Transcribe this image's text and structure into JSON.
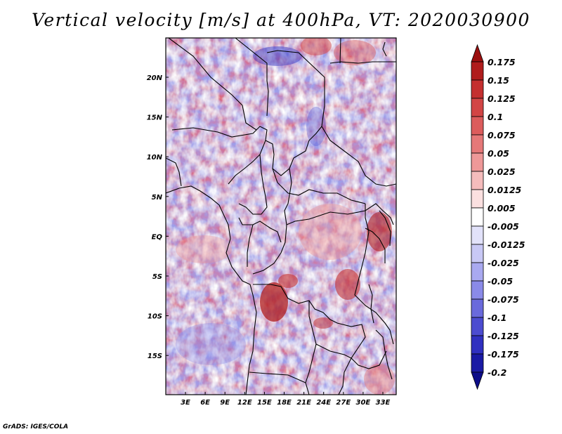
{
  "title": "Vertical velocity [m/s] at 400hPa, VT: 2020030900",
  "footer": "GrADS: IGES/COLA",
  "map": {
    "lat_labels": [
      "20N",
      "15N",
      "10N",
      "5N",
      "EQ",
      "5S",
      "10S",
      "15S"
    ],
    "lon_labels": [
      "3E",
      "6E",
      "9E",
      "12E",
      "15E",
      "18E",
      "21E",
      "24E",
      "27E",
      "30E",
      "33E"
    ]
  },
  "colorbar": {
    "labels": [
      "0.175",
      "0.15",
      "0.125",
      "0.1",
      "0.075",
      "0.05",
      "0.025",
      "0.0125",
      "0.005",
      "-0.005",
      "-0.0125",
      "-0.025",
      "-0.05",
      "-0.075",
      "-0.1",
      "-0.125",
      "-0.175",
      "-0.2"
    ],
    "colors": [
      "#9b0f0f",
      "#b01c1c",
      "#c42f2f",
      "#d24545",
      "#dc5c5c",
      "#e57878",
      "#ee9898",
      "#f5bcbc",
      "#fbe0e0",
      "#ffffff",
      "#e2e2fa",
      "#c8c8f5",
      "#a9a9f0",
      "#8a8ae8",
      "#6a6adc",
      "#4c4cd0",
      "#3030c0",
      "#1a1aa4",
      "#0c0c88"
    ]
  }
}
